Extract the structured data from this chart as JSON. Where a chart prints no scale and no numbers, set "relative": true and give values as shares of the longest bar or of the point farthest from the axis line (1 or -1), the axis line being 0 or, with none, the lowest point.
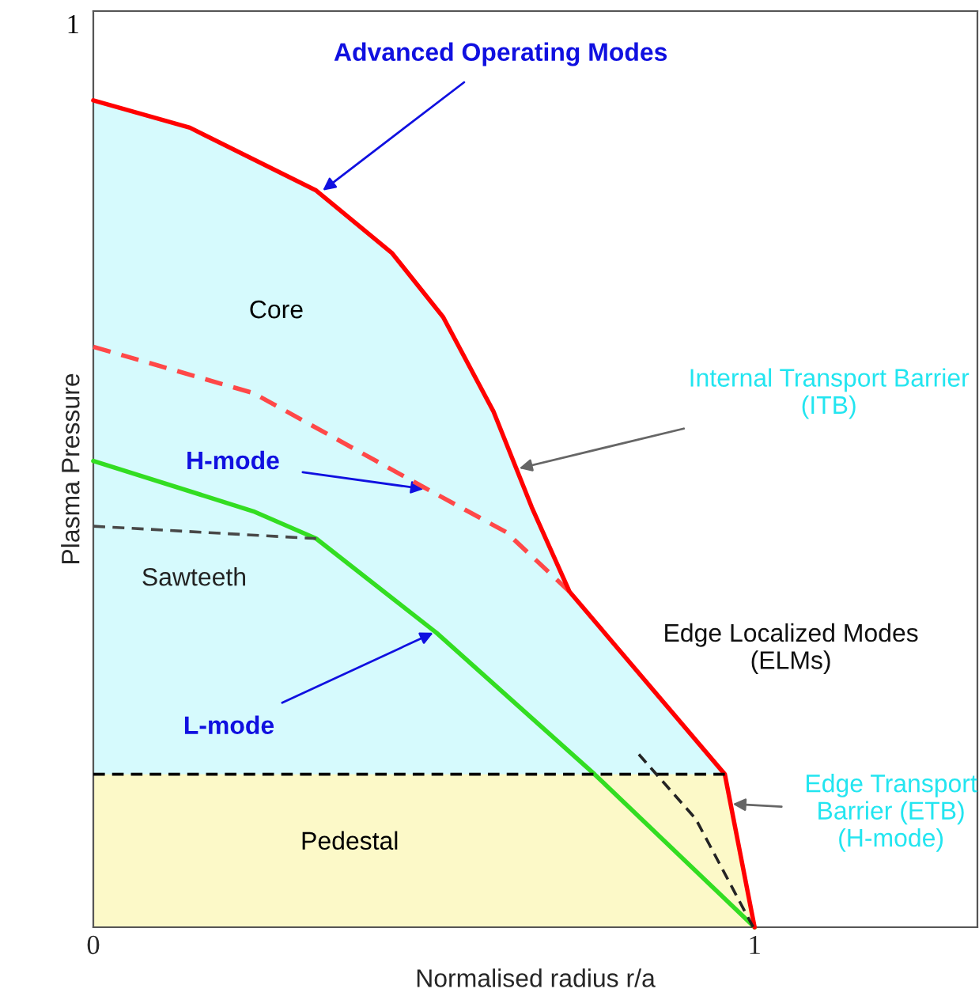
{
  "chart_data": {
    "type": "line",
    "relative": true,
    "xlabel": "Normalised radius r/a",
    "ylabel": "Plasma Pressure",
    "xlim": [
      0,
      1.337
    ],
    "xticks": [
      0,
      1
    ],
    "grid": false,
    "legend": false,
    "marker": "none",
    "series": [
      {
        "color": "#000000",
        "line_style": "dashed",
        "x": [
          0,
          0.955
        ],
        "values": [
          0.185,
          0.185
        ]
      },
      {
        "color": "#484848",
        "line_style": "dashed",
        "x": [
          0,
          0.337
        ],
        "values": [
          0.485,
          0.47
        ]
      },
      {
        "color": "#242424",
        "line_style": "dashed",
        "x": [
          0.825,
          0.911,
          0.998
        ],
        "values": [
          0.209,
          0.131,
          0
        ]
      },
      {
        "color": "#33dd22",
        "line_style": "solid",
        "x": [
          0,
          0.242,
          0.337,
          0.519,
          0.758,
          1
        ],
        "values": [
          0.564,
          0.503,
          0.47,
          0.356,
          0.185,
          0
        ]
      },
      {
        "color": "#ff4848",
        "line_style": "dashed",
        "x": [
          0,
          0.242,
          0.5,
          0.624,
          0.72
        ],
        "values": [
          0.702,
          0.646,
          0.532,
          0.478,
          0.406
        ]
      },
      {
        "type": "area",
        "color": "#ff0000",
        "line_style": "solid",
        "x": [
          0,
          0.146,
          0.337,
          0.452,
          0.529,
          0.605,
          0.663,
          0.72,
          0.955,
          1
        ],
        "values": [
          1,
          0.967,
          0.891,
          0.815,
          0.738,
          0.624,
          0.508,
          0.406,
          0.185,
          0
        ]
      }
    ],
    "bands": [
      {
        "axis": "y",
        "from": 0,
        "to": 0.185,
        "color": "#fcf9c8"
      }
    ],
    "annotations": [
      {
        "text": "Advanced Operating Modes",
        "x": 0.347,
        "y": 0.891
      },
      "Core",
      {
        "text": "Internal Transport Barrier\n(ITB)",
        "x": 0.644,
        "y": 0.555
      },
      {
        "text": "H-mode",
        "x": 0.5,
        "y": 0.53
      },
      "Sawteeth",
      {
        "text": "L-mode",
        "x": 0.514,
        "y": 0.356
      },
      "Edge Localized Modes\n(ELMs)",
      {
        "text": "Edge Transport\nBarrier (ETB)\n(H-mode)",
        "x": 0.967,
        "y": 0.149
      },
      "Pedestal",
      "1"
    ]
  }
}
